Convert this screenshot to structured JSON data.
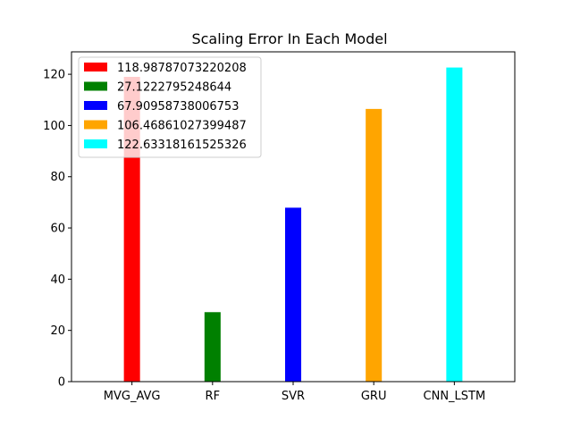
{
  "chart_data": {
    "type": "bar",
    "title": "Scaling Error In Each Model",
    "xlabel": "",
    "ylabel": "",
    "categories": [
      "MVG_AVG",
      "RF",
      "SVR",
      "GRU",
      "CNN_LSTM"
    ],
    "values": [
      118.98787073220208,
      27.1222795248644,
      67.90958738006753,
      106.46861027399487,
      122.63318161525326
    ],
    "colors": [
      "#ff0000",
      "#008000",
      "#0000ff",
      "#ffa500",
      "#00ffff"
    ],
    "legend_labels": [
      "118.98787073220208",
      "27.1222795248644",
      "67.90958738006753",
      "106.46861027399487",
      "122.63318161525326"
    ],
    "legend_position": "top-left",
    "ylim": [
      0,
      128.76
    ],
    "yticks": [
      0,
      20,
      40,
      60,
      80,
      100,
      120
    ],
    "grid": false
  }
}
